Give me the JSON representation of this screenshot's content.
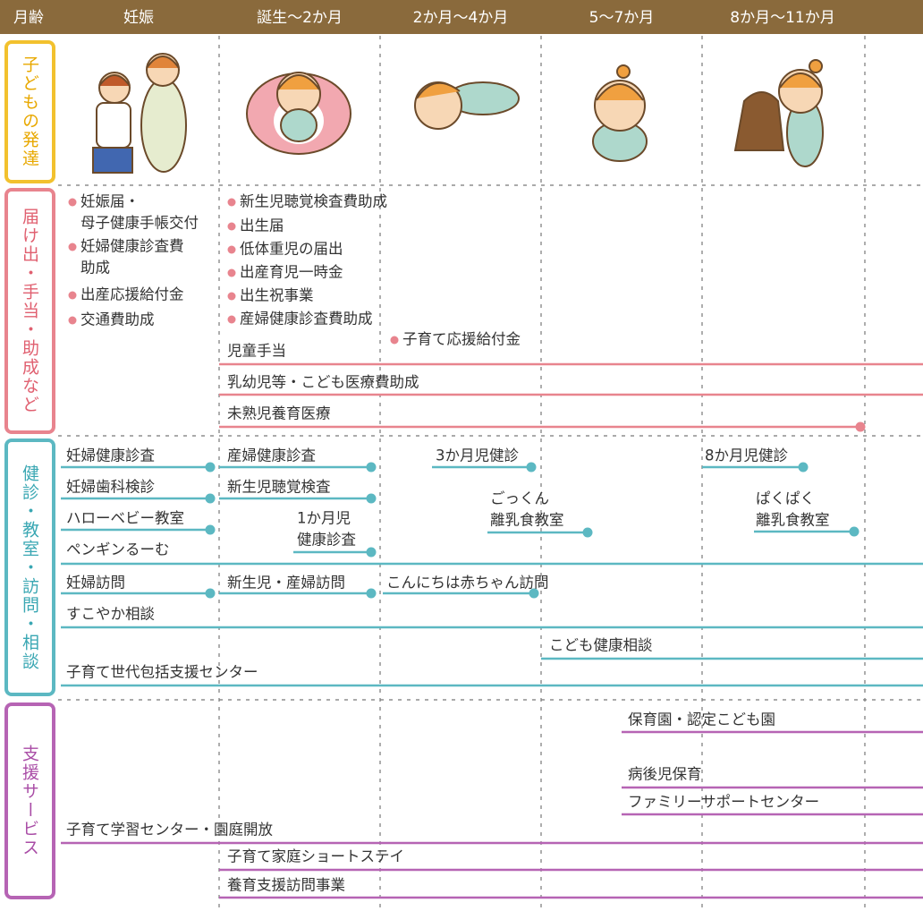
{
  "header": {
    "columns": [
      "月齢",
      "妊娠",
      "誕生～2か月",
      "2か月～4か月",
      "5～7か月",
      "8か月～11か月"
    ]
  },
  "sections": [
    {
      "label": "子どもの発達"
    },
    {
      "label": "届け出・手当・助成など",
      "items": [
        {
          "lines": [
            "妊娠届・",
            "母子健康手帳交付"
          ]
        },
        {
          "lines": [
            "妊婦健康診査費",
            "助成"
          ]
        },
        {
          "lines": [
            "出産応援給付金"
          ]
        },
        {
          "lines": [
            "交通費助成"
          ]
        },
        {
          "lines": [
            "新生児聴覚検査費助成"
          ]
        },
        {
          "lines": [
            "出生届"
          ]
        },
        {
          "lines": [
            "低体重児の届出"
          ]
        },
        {
          "lines": [
            "出産育児一時金"
          ]
        },
        {
          "lines": [
            "出生祝事業"
          ]
        },
        {
          "lines": [
            "産婦健康診査費助成"
          ]
        },
        {
          "lines": [
            "子育て応援給付金"
          ]
        },
        {
          "lines": [
            "児童手当"
          ]
        },
        {
          "lines": [
            "乳幼児等・こども医療費助成"
          ]
        },
        {
          "lines": [
            "未熟児養育医療"
          ]
        }
      ]
    },
    {
      "label": "健診・教室・訪問・相談",
      "items": [
        {
          "lines": [
            "妊婦健康診査"
          ]
        },
        {
          "lines": [
            "妊婦歯科検診"
          ]
        },
        {
          "lines": [
            "ハローベビー教室"
          ]
        },
        {
          "lines": [
            "ペンギンるーむ"
          ]
        },
        {
          "lines": [
            "妊婦訪問"
          ]
        },
        {
          "lines": [
            "すこやか相談"
          ]
        },
        {
          "lines": [
            "子育て世代包括支援センター"
          ]
        },
        {
          "lines": [
            "産婦健康診査"
          ]
        },
        {
          "lines": [
            "新生児聴覚検査"
          ]
        },
        {
          "lines": [
            "1か月児",
            "健康診査"
          ]
        },
        {
          "lines": [
            "新生児・産婦訪問"
          ]
        },
        {
          "lines": [
            "こんにちは赤ちゃん訪問"
          ]
        },
        {
          "lines": [
            "3か月児健診"
          ]
        },
        {
          "lines": [
            "ごっくん",
            "離乳食教室"
          ]
        },
        {
          "lines": [
            "こども健康相談"
          ]
        },
        {
          "lines": [
            "8か月児健診"
          ]
        },
        {
          "lines": [
            "ぱくぱく",
            "離乳食教室"
          ]
        }
      ]
    },
    {
      "label": "支援サービス",
      "items": [
        {
          "lines": [
            "保育園・認定こども園"
          ]
        },
        {
          "lines": [
            "病後児保育"
          ]
        },
        {
          "lines": [
            "ファミリーサポートセンター"
          ]
        },
        {
          "lines": [
            "子育て学習センター・園庭開放"
          ]
        },
        {
          "lines": [
            "子育て家庭ショートステイ"
          ]
        },
        {
          "lines": [
            "養育支援訪問事業"
          ]
        }
      ]
    }
  ]
}
